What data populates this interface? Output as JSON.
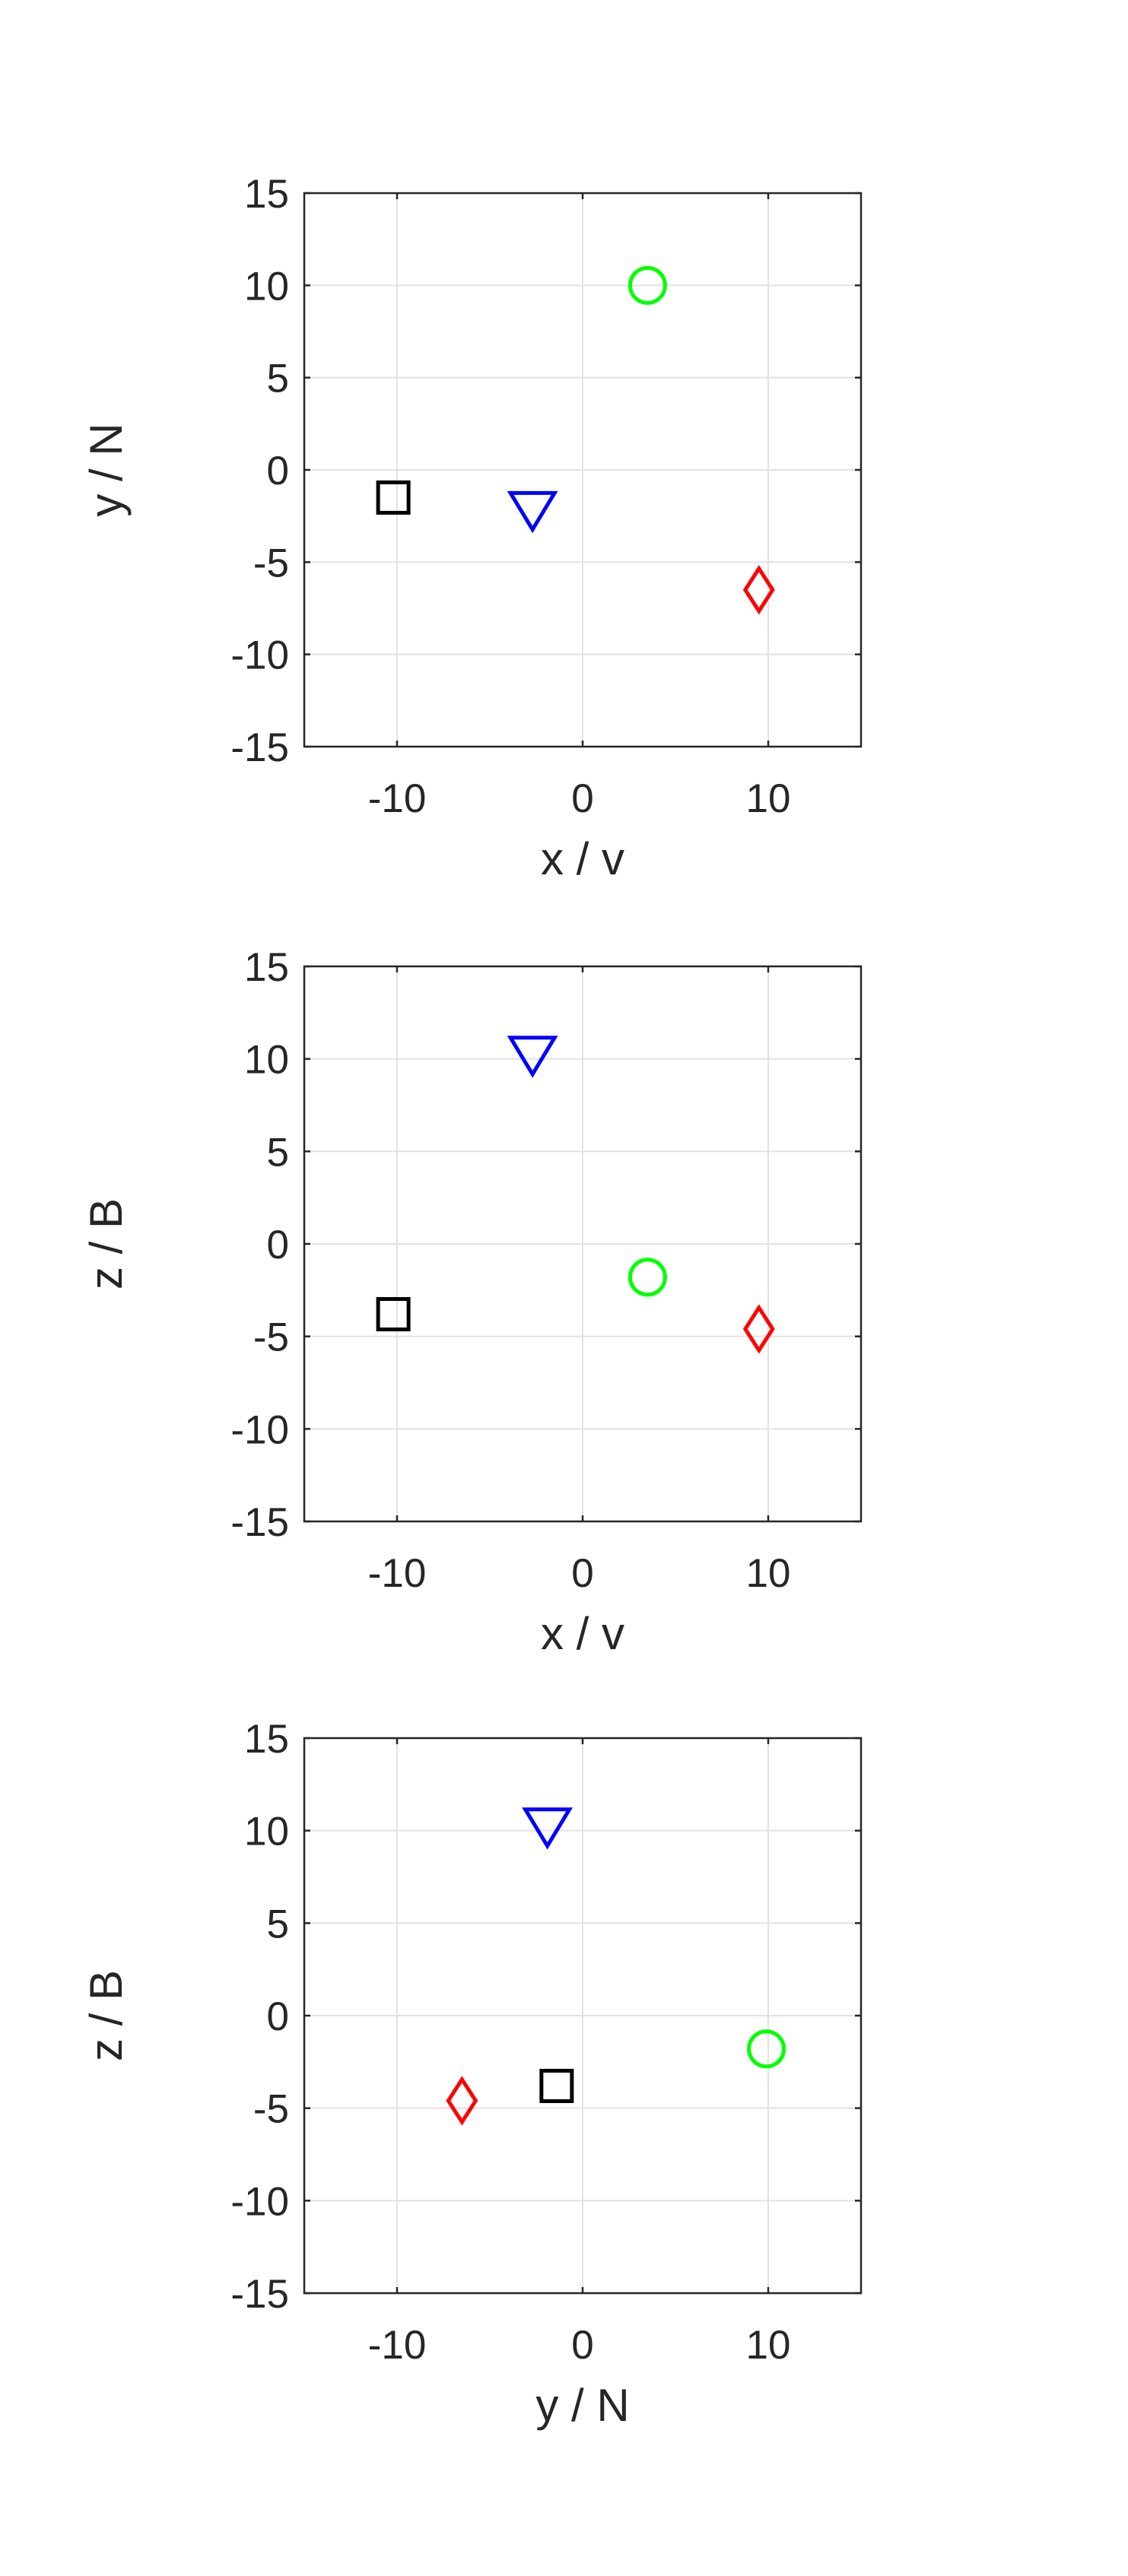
{
  "chart_data": [
    {
      "type": "scatter",
      "xlabel": "x / v",
      "ylabel": "y / N",
      "xlim": [
        -15,
        15
      ],
      "ylim": [
        -15,
        15
      ],
      "xticks": [
        -10,
        0,
        10
      ],
      "yticks": [
        -15,
        -10,
        -5,
        0,
        5,
        10,
        15
      ],
      "grid": true,
      "series": [
        {
          "marker": "circle",
          "color": "#00ff00",
          "x": [
            3.5
          ],
          "y": [
            10
          ]
        },
        {
          "marker": "triangle-down",
          "color": "#0000ff",
          "x": [
            -2.7
          ],
          "y": [
            -2.2
          ]
        },
        {
          "marker": "square",
          "color": "#000000",
          "x": [
            -10.2
          ],
          "y": [
            -1.5
          ]
        },
        {
          "marker": "diamond",
          "color": "#ff0000",
          "x": [
            9.5
          ],
          "y": [
            -6.5
          ]
        }
      ]
    },
    {
      "type": "scatter",
      "xlabel": "x / v",
      "ylabel": "z / B",
      "xlim": [
        -15,
        15
      ],
      "ylim": [
        -15,
        15
      ],
      "xticks": [
        -10,
        0,
        10
      ],
      "yticks": [
        -15,
        -10,
        -5,
        0,
        5,
        10,
        15
      ],
      "grid": true,
      "series": [
        {
          "marker": "circle",
          "color": "#00ff00",
          "x": [
            3.5
          ],
          "y": [
            -1.8
          ]
        },
        {
          "marker": "triangle-down",
          "color": "#0000ff",
          "x": [
            -2.7
          ],
          "y": [
            10.2
          ]
        },
        {
          "marker": "square",
          "color": "#000000",
          "x": [
            -10.2
          ],
          "y": [
            -3.8
          ]
        },
        {
          "marker": "diamond",
          "color": "#ff0000",
          "x": [
            9.5
          ],
          "y": [
            -4.6
          ]
        }
      ]
    },
    {
      "type": "scatter",
      "xlabel": "y / N",
      "ylabel": "z / B",
      "xlim": [
        -15,
        15
      ],
      "ylim": [
        -15,
        15
      ],
      "xticks": [
        -10,
        0,
        10
      ],
      "yticks": [
        -15,
        -10,
        -5,
        0,
        5,
        10,
        15
      ],
      "grid": true,
      "series": [
        {
          "marker": "circle",
          "color": "#00ff00",
          "x": [
            9.9
          ],
          "y": [
            -1.8
          ]
        },
        {
          "marker": "triangle-down",
          "color": "#0000ff",
          "x": [
            -1.9
          ],
          "y": [
            10.2
          ]
        },
        {
          "marker": "square",
          "color": "#000000",
          "x": [
            -1.4
          ],
          "y": [
            -3.8
          ]
        },
        {
          "marker": "diamond",
          "color": "#ff0000",
          "x": [
            -6.5
          ],
          "y": [
            -4.6
          ]
        }
      ]
    }
  ]
}
